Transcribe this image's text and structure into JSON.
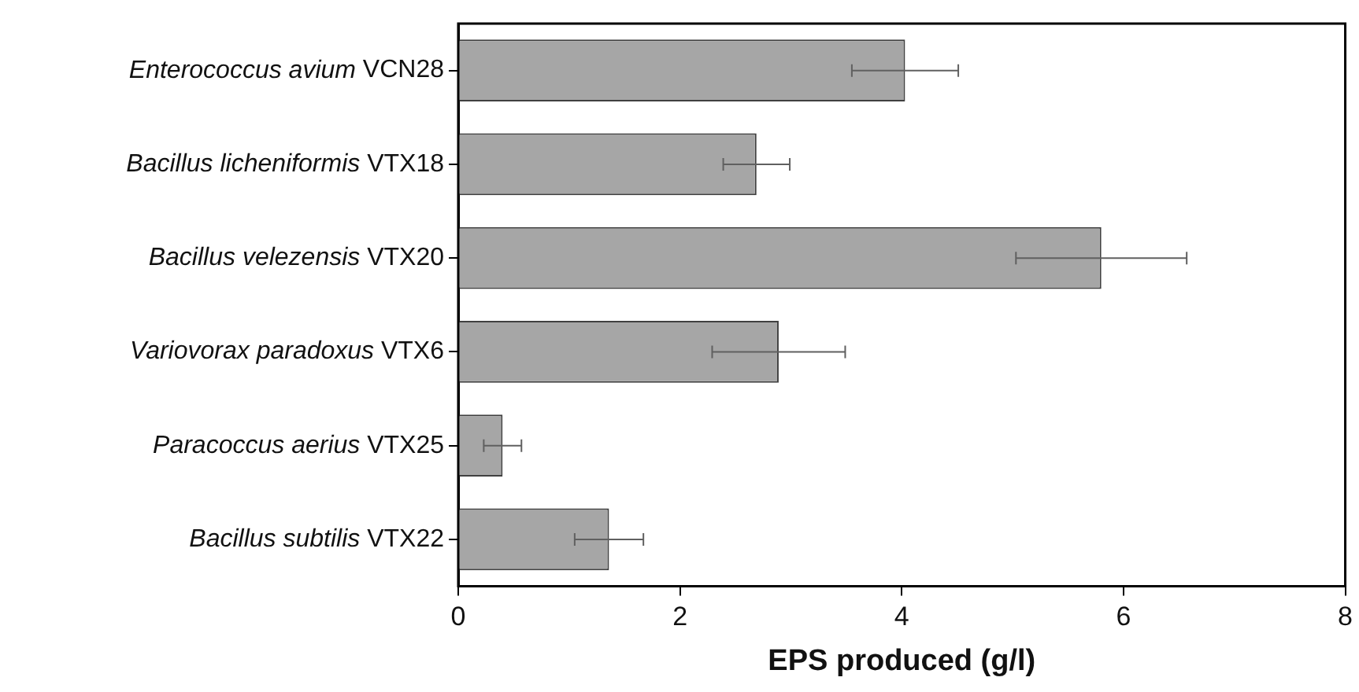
{
  "chart_data": {
    "type": "bar",
    "orientation": "horizontal",
    "xlabel": "EPS produced (g/l)",
    "categories": [
      "Enterococcus avium VCN28",
      "Bacillus licheniformis VTX18",
      "Bacillus velezensis VTX20",
      "Variovorax paradoxus VTX6",
      "Paracoccus aerius VTX25",
      "Bacillus subtilis VTX22"
    ],
    "values": [
      4.03,
      2.69,
      5.8,
      2.89,
      0.4,
      1.36
    ],
    "errors": [
      0.48,
      0.3,
      0.77,
      0.6,
      0.17,
      0.31
    ],
    "color": "#a6a6a6",
    "xlim": [
      0,
      8
    ],
    "xticks": [
      0,
      2,
      4,
      6,
      8
    ],
    "grid": false,
    "legend": false
  }
}
